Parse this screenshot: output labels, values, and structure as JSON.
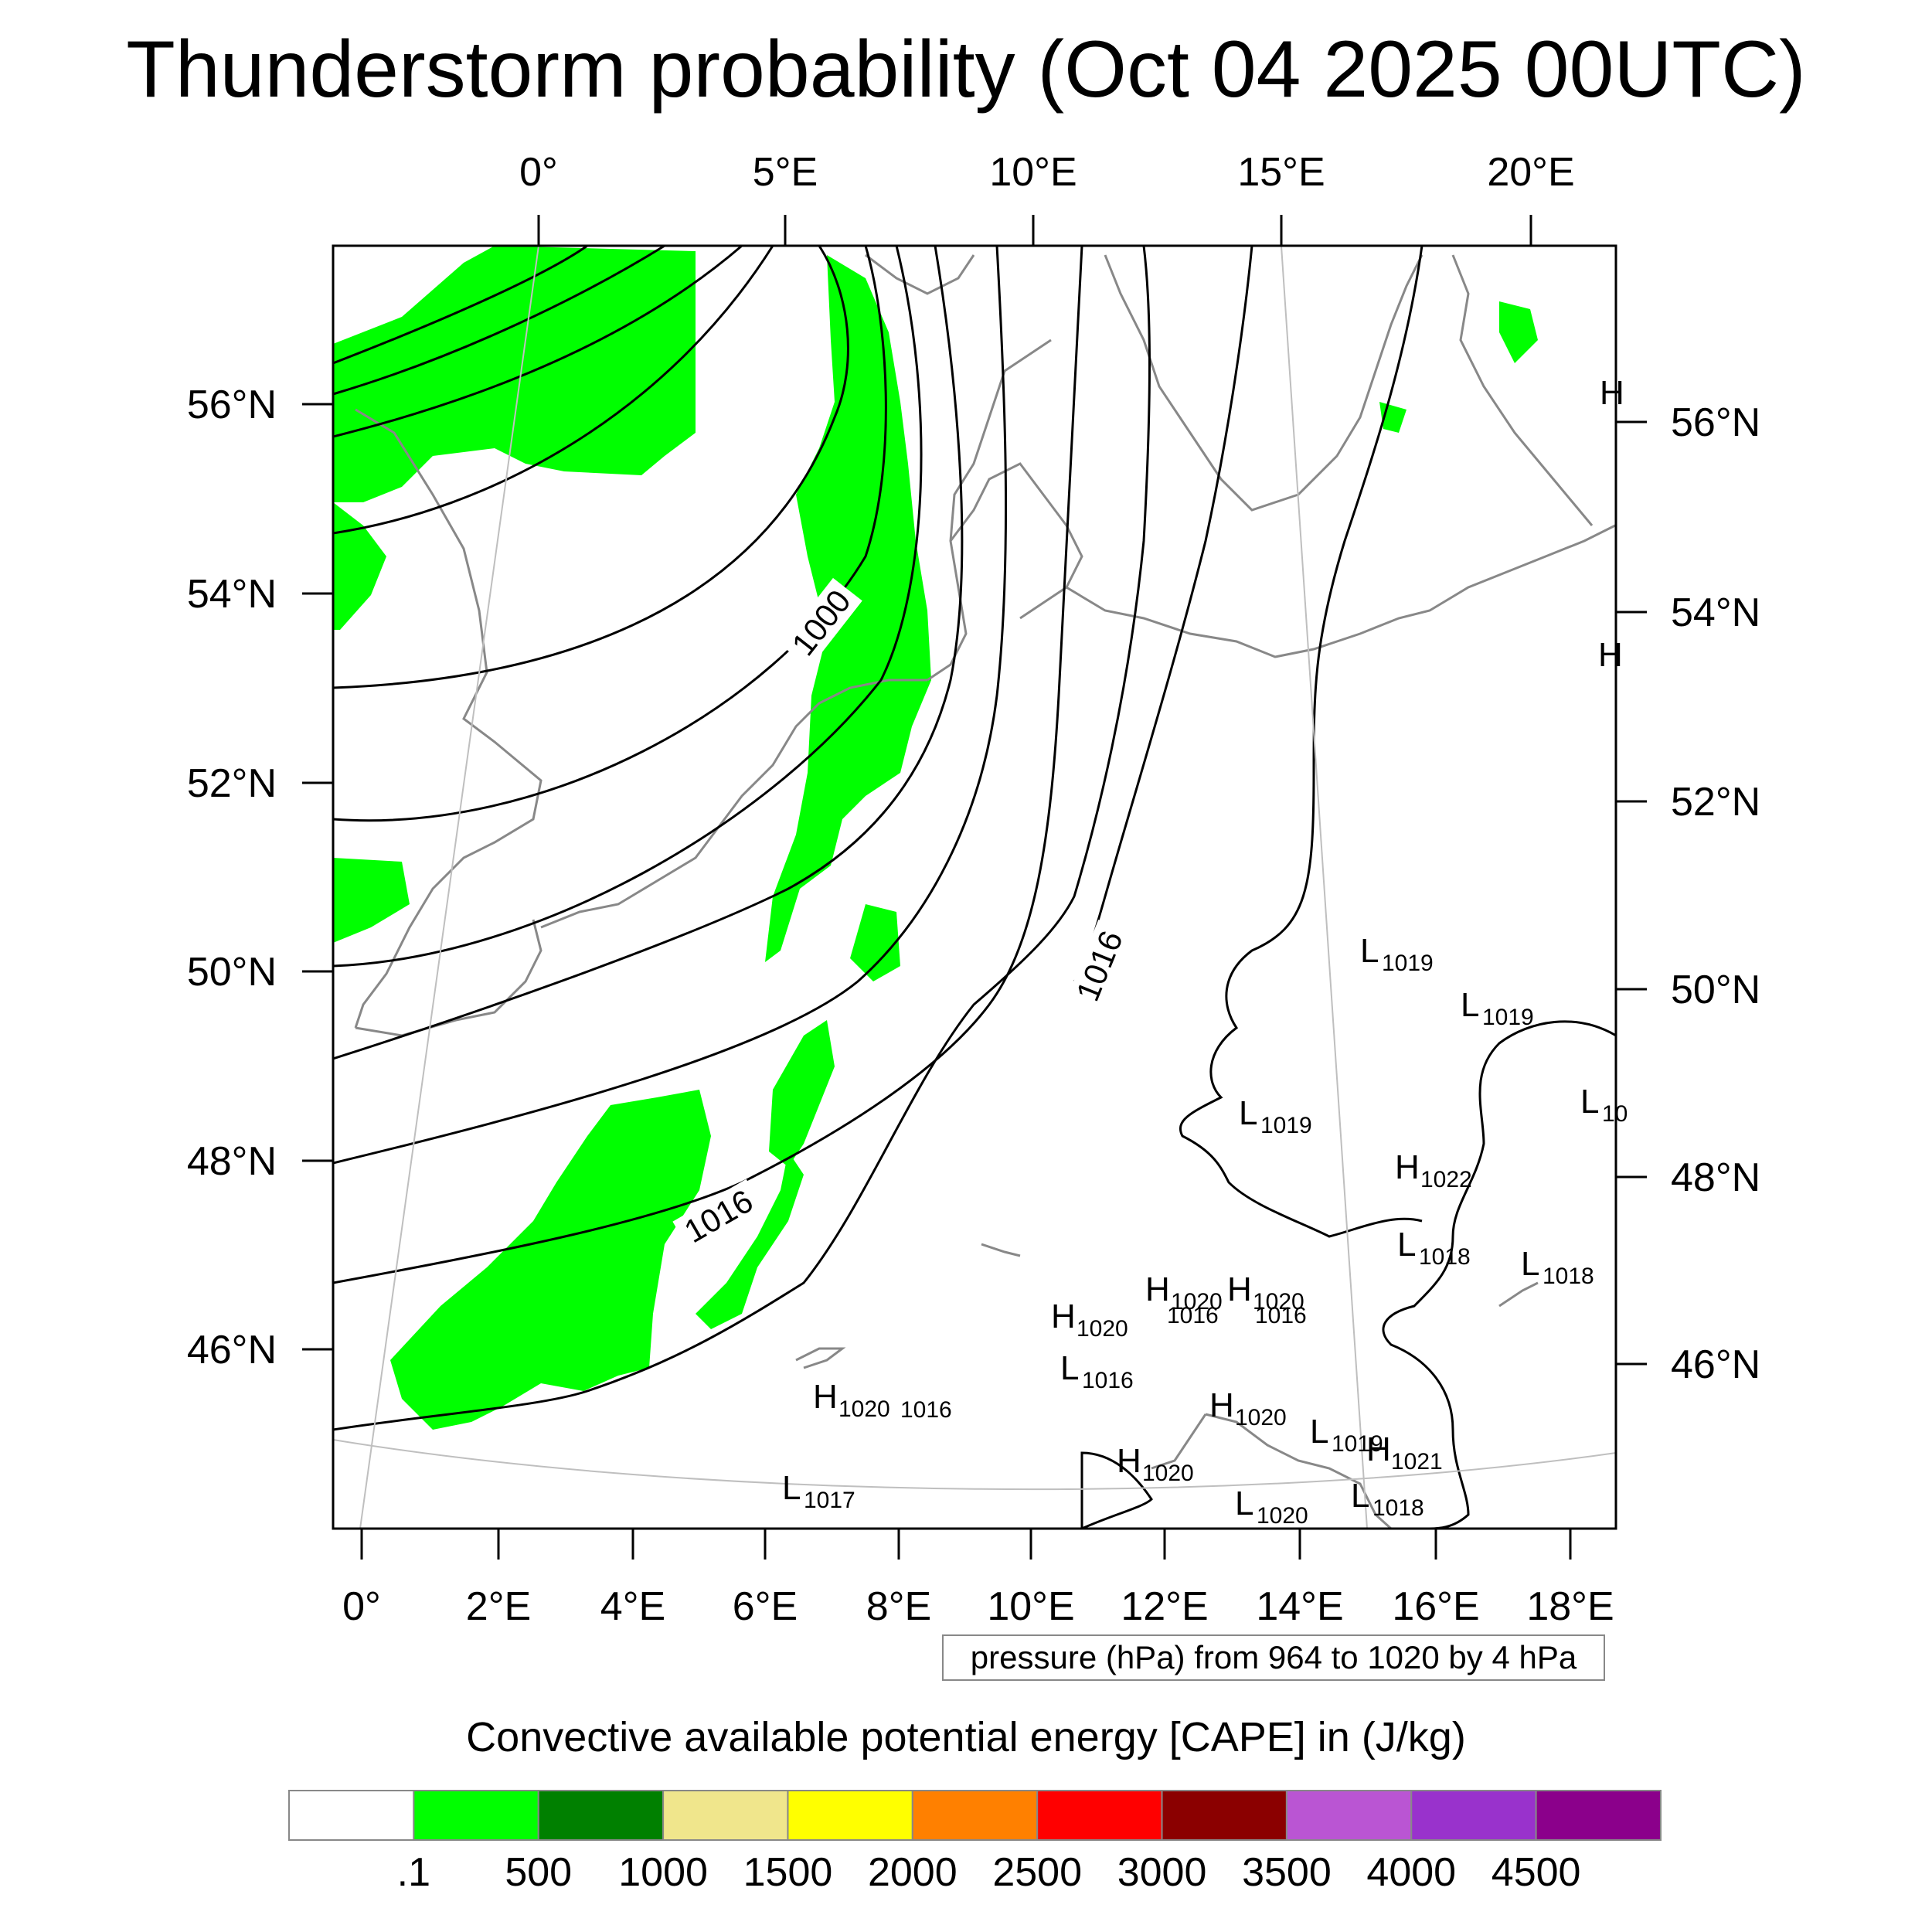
{
  "title": "Thunderstorm probability (Oct 04 2025 00UTC)",
  "map": {
    "top_lon_labels": [
      "0°",
      "5°E",
      "10°E",
      "15°E",
      "20°E"
    ],
    "bottom_lon_labels": [
      "0°",
      "2°E",
      "4°E",
      "6°E",
      "8°E",
      "10°E",
      "12°E",
      "14°E",
      "16°E",
      "18°E"
    ],
    "left_lat_labels": [
      "56°N",
      "54°N",
      "52°N",
      "50°N",
      "48°N",
      "46°N"
    ],
    "right_lat_labels": [
      "56°N",
      "54°N",
      "52°N",
      "50°N",
      "48°N",
      "46°N"
    ],
    "isobar_labels": [
      "1000",
      "1016",
      "1016"
    ],
    "pressure_centers": [
      {
        "letter": "L",
        "value": "1019"
      },
      {
        "letter": "L",
        "value": "1019"
      },
      {
        "letter": "L",
        "value": "10"
      },
      {
        "letter": "L",
        "value": "1019"
      },
      {
        "letter": "H",
        "value": "1022"
      },
      {
        "letter": "L",
        "value": "1018"
      },
      {
        "letter": "L",
        "value": "1018"
      },
      {
        "letter": "H",
        "value": "1020"
      },
      {
        "letter": "H",
        "value": "1020"
      },
      {
        "letter": "H",
        "value": "1020"
      },
      {
        "letter": "L",
        "value": "1016"
      },
      {
        "letter": "H",
        "value": "1020"
      },
      {
        "letter": "H",
        "value": "1020"
      },
      {
        "letter": "L",
        "value": "1019"
      },
      {
        "letter": "H",
        "value": "1021"
      },
      {
        "letter": "H",
        "value": "1020"
      },
      {
        "letter": "L",
        "value": "1017"
      },
      {
        "letter": "L",
        "value": "1020"
      },
      {
        "letter": "L",
        "value": "1018"
      },
      {
        "letter": "H",
        "value": ""
      },
      {
        "letter": "H",
        "value": ""
      }
    ],
    "partial_labels": [
      "1016",
      "1016",
      "1016"
    ],
    "isobar_range": {
      "min_hpa": 964,
      "max_hpa": 1020,
      "interval_hpa": 4
    },
    "cape_fill_present_color": "#00ff00"
  },
  "contour_info": "pressure (hPa) from 964 to 1020 by 4 hPa",
  "colorbar": {
    "title": "Convective available potential energy [CAPE] in (J/kg)",
    "colors": [
      "#ffffff",
      "#00ff00",
      "#008000",
      "#f0e68c",
      "#ffff00",
      "#ff8000",
      "#ff0000",
      "#8b0000",
      "#ba55d3",
      "#9932cc",
      "#8b008b"
    ],
    "tick_labels": [
      ".1",
      "500",
      "1000",
      "1500",
      "2000",
      "2500",
      "3000",
      "3500",
      "4000",
      "4500"
    ]
  }
}
